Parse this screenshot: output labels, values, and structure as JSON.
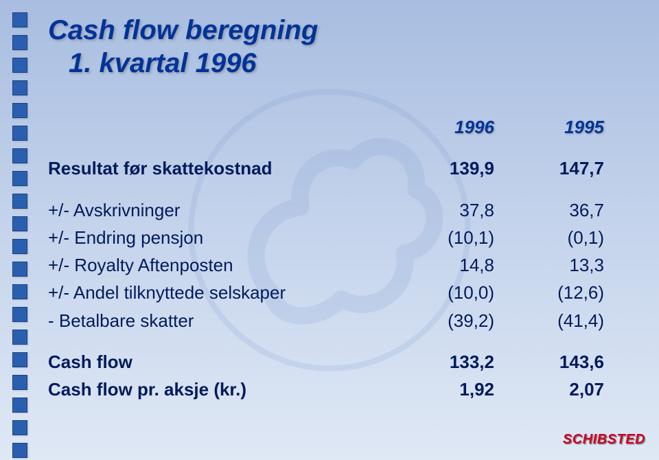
{
  "title": {
    "line1": "Cash flow beregning",
    "line2": "1. kvartal 1996"
  },
  "headers": {
    "c1": "1996",
    "c2": "1995"
  },
  "rows": [
    {
      "label": "Resultat før skattekostnad",
      "c1": "139,9",
      "c2": "147,7",
      "bold": true,
      "gapAfter": true
    },
    {
      "label": "+/- Avskrivninger",
      "c1": "37,8",
      "c2": "36,7"
    },
    {
      "label": "+/- Endring pensjon",
      "c1": "(10,1)",
      "c2": "(0,1)"
    },
    {
      "label": "+/- Royalty Aftenposten",
      "c1": "14,8",
      "c2": "13,3"
    },
    {
      "label": "+/- Andel tilknyttede selskaper",
      "c1": "(10,0)",
      "c2": "(12,6)"
    },
    {
      "label": "- Betalbare skatter",
      "c1": "(39,2)",
      "c2": "(41,4)",
      "gapAfter": true
    },
    {
      "label": "Cash flow",
      "c1": "133,2",
      "c2": "143,6",
      "bold": true
    },
    {
      "label": "Cash flow pr. aksje (kr.)",
      "c1": "1,92",
      "c2": "2,07",
      "bold": true
    }
  ],
  "brand": "SCHIBSTED",
  "style": {
    "bullet_count": 20,
    "bullet_color": "#2a5fb0",
    "title_color": "#003399",
    "text_color": "#001a5c",
    "brand_color": "#cc0022",
    "bg_gradient": [
      "#a8bde0",
      "#c5d4ec",
      "#dfe8f5"
    ],
    "title_fontsize": 40,
    "row_fontsize": 26
  }
}
